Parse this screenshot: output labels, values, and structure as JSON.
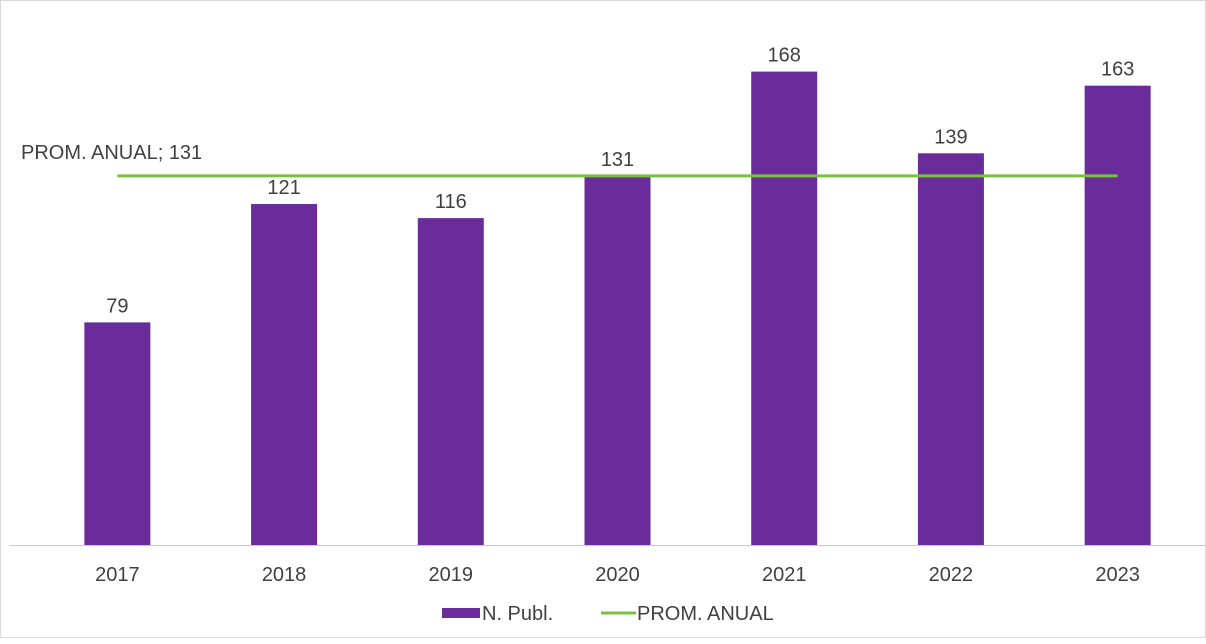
{
  "colors": {
    "bar": "#6a2b9b",
    "avg_line": "#7cc043",
    "axis": "#c8c8c8",
    "text": "#404040"
  },
  "chart_data": {
    "type": "bar",
    "categories": [
      "2017",
      "2018",
      "2019",
      "2020",
      "2021",
      "2022",
      "2023"
    ],
    "series": [
      {
        "name": "N. Publ.",
        "kind": "bar",
        "values": [
          79,
          121,
          116,
          131,
          168,
          139,
          163
        ]
      },
      {
        "name": "PROM. ANUAL",
        "kind": "line",
        "values": [
          131,
          131,
          131,
          131,
          131,
          131,
          131
        ]
      }
    ],
    "data_labels": [
      "79",
      "121",
      "116",
      "131",
      "168",
      "139",
      "163"
    ],
    "avg_label": "PROM. ANUAL; 131",
    "ylim": [
      0,
      180
    ],
    "grid": false,
    "y_axis_visible": false,
    "legend_position": "bottom"
  }
}
